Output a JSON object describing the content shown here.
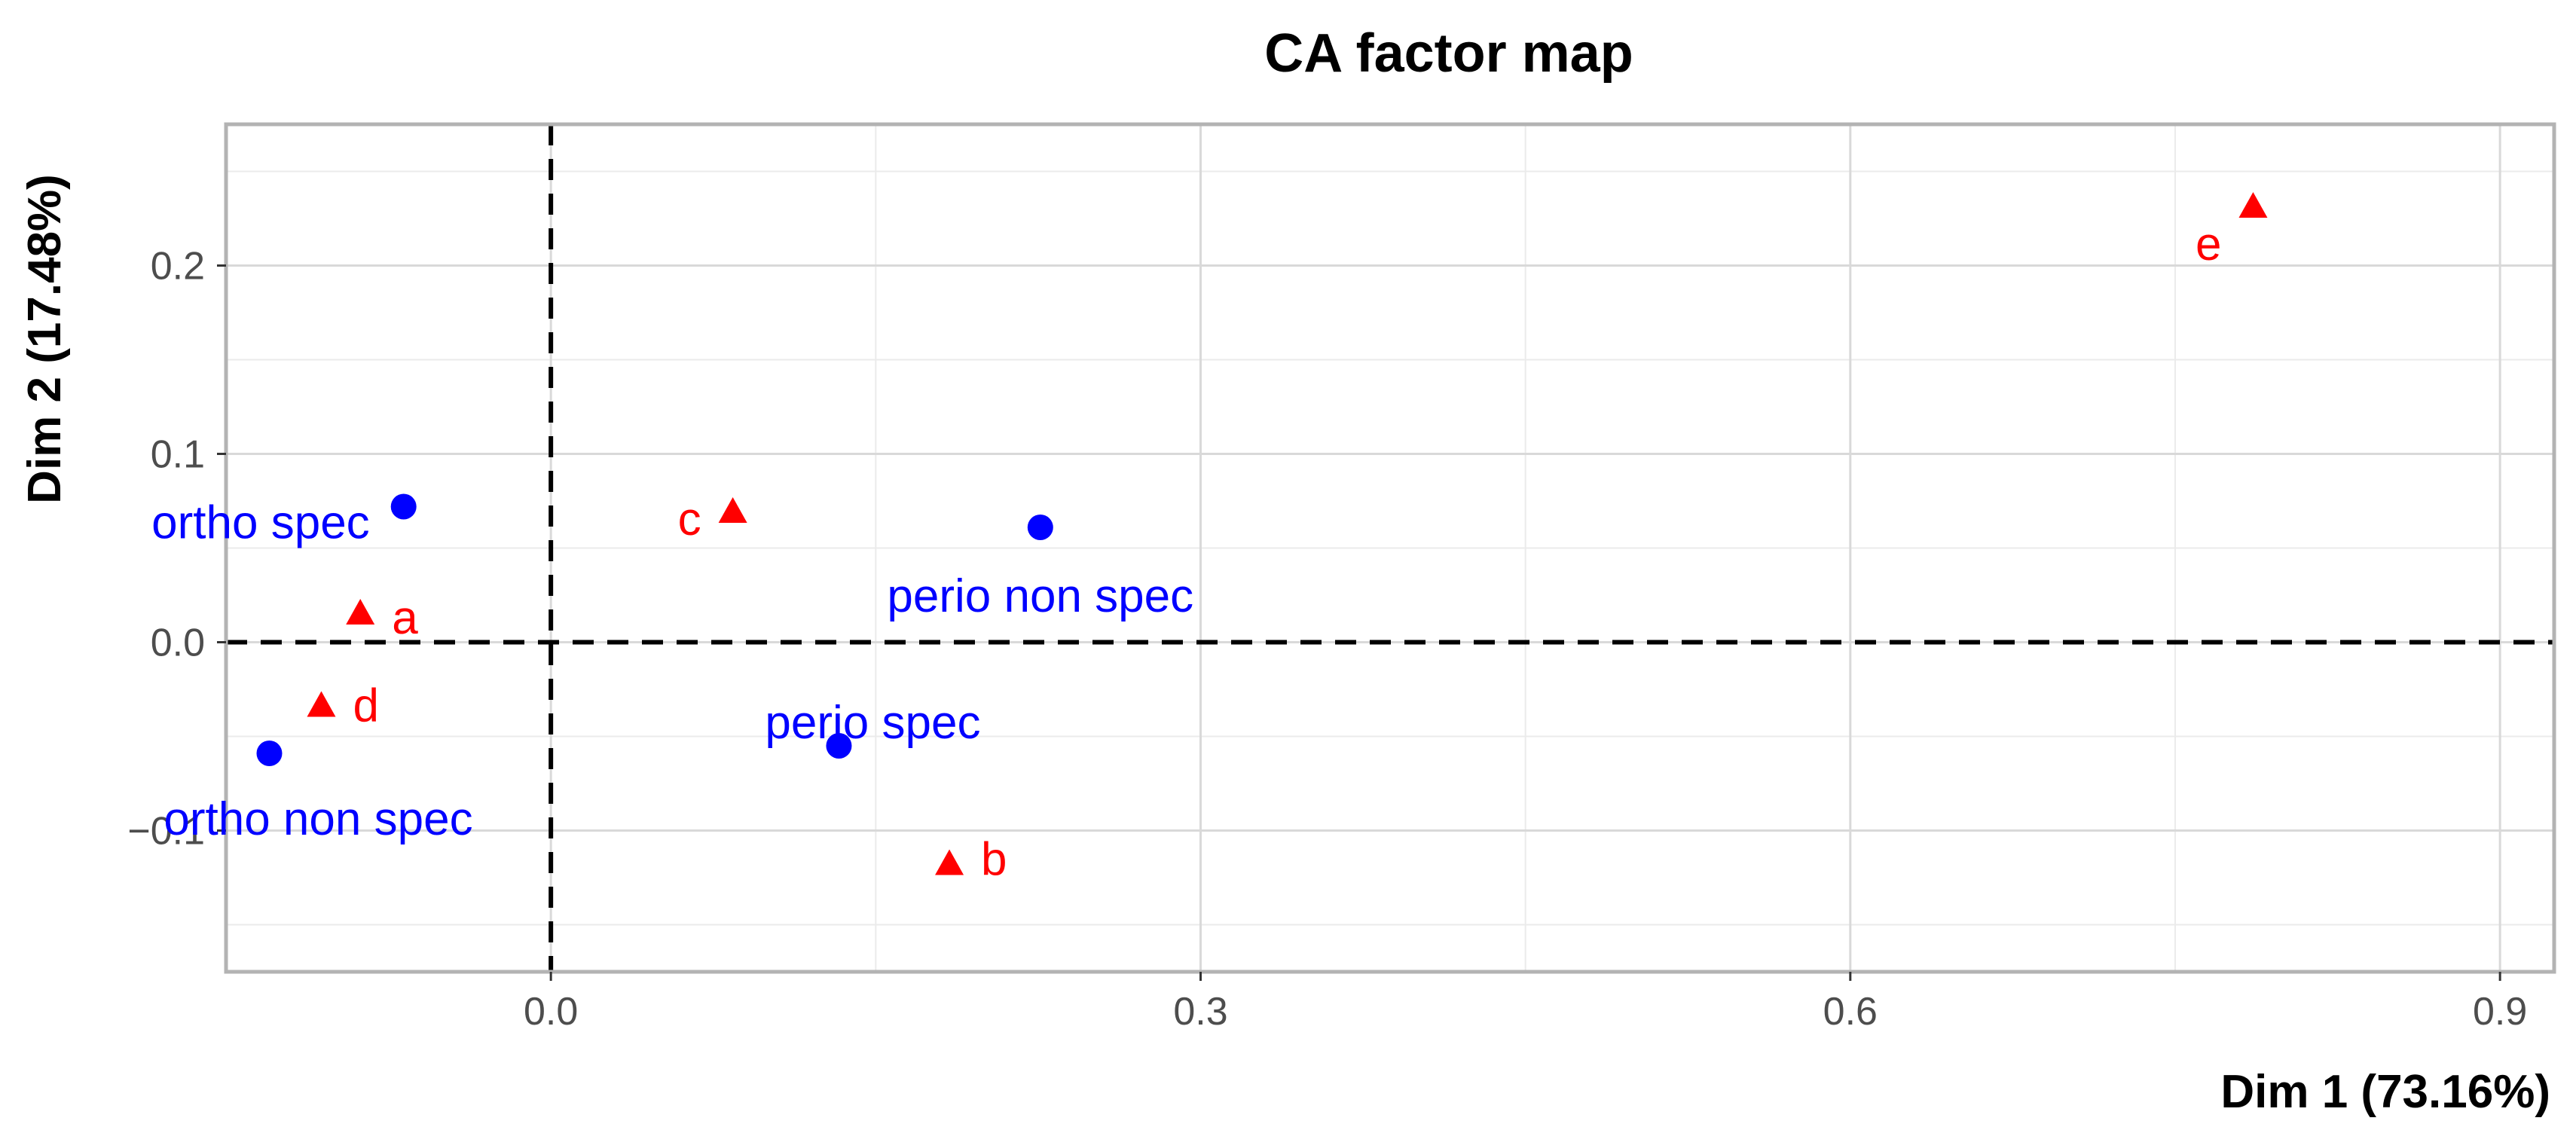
{
  "chart_data": {
    "type": "scatter",
    "title": "CA factor map",
    "xlabel": "Dim 1 (73.16%)",
    "ylabel": "Dim 2 (17.48%)",
    "xlim": [
      -0.15,
      0.925
    ],
    "ylim": [
      -0.175,
      0.275
    ],
    "x_ticks": [
      0.0,
      0.3,
      0.6,
      0.9
    ],
    "x_tick_labels": [
      "0.0",
      "0.3",
      "0.6",
      "0.9"
    ],
    "y_ticks": [
      -0.1,
      0.0,
      0.1,
      0.2
    ],
    "y_tick_labels": [
      "−0.1",
      "0.0",
      "0.1",
      "0.2"
    ],
    "grid": true,
    "reference_lines": {
      "x": 0,
      "y": 0,
      "style": "dashed"
    },
    "series": [
      {
        "marker": "circle",
        "color": "#0000ff",
        "points": [
          {
            "label": "ortho spec",
            "x": -0.068,
            "y": 0.072
          },
          {
            "label": "perio non spec",
            "x": 0.226,
            "y": 0.061
          },
          {
            "label": "perio spec",
            "x": 0.133,
            "y": -0.055
          },
          {
            "label": "ortho non spec",
            "x": -0.13,
            "y": -0.059
          }
        ]
      },
      {
        "marker": "triangle",
        "color": "#ff0000",
        "points": [
          {
            "label": "a",
            "x": -0.088,
            "y": 0.015
          },
          {
            "label": "b",
            "x": 0.184,
            "y": -0.118
          },
          {
            "label": "c",
            "x": 0.084,
            "y": 0.069
          },
          {
            "label": "d",
            "x": -0.106,
            "y": -0.034
          },
          {
            "label": "e",
            "x": 0.786,
            "y": 0.231
          }
        ]
      }
    ]
  }
}
